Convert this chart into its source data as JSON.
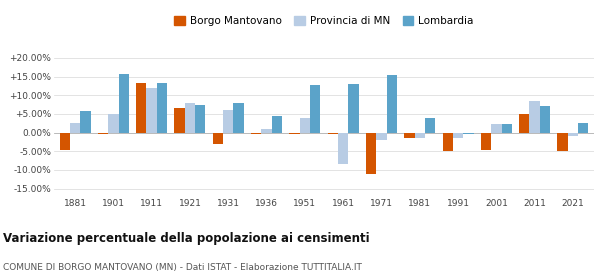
{
  "years": [
    1881,
    1901,
    1911,
    1921,
    1931,
    1936,
    1951,
    1961,
    1971,
    1981,
    1991,
    2001,
    2011,
    2021
  ],
  "borgo": [
    -4.8,
    -0.5,
    13.2,
    6.7,
    -3.2,
    -0.3,
    -0.3,
    -0.5,
    -11.0,
    -1.5,
    -5.0,
    -4.8,
    5.0,
    -5.0
  ],
  "provincia": [
    2.5,
    5.0,
    12.0,
    7.8,
    6.0,
    1.0,
    4.0,
    -8.5,
    -2.0,
    -1.5,
    -1.5,
    2.2,
    8.5,
    -0.8
  ],
  "lombardia": [
    5.7,
    15.7,
    13.2,
    7.5,
    8.0,
    4.5,
    12.7,
    13.0,
    15.5,
    4.0,
    -0.5,
    2.2,
    7.2,
    2.5
  ],
  "borgo_color": "#d45500",
  "provincia_color": "#b8cce4",
  "lombardia_color": "#5ba3c9",
  "title": "Variazione percentuale della popolazione ai censimenti",
  "subtitle": "COMUNE DI BORGO MANTOVANO (MN) - Dati ISTAT - Elaborazione TUTTITALIA.IT",
  "yticks": [
    -15,
    -10,
    -5,
    0,
    5,
    10,
    15,
    20
  ],
  "ytick_labels": [
    "-15.00%",
    "-10.00%",
    "-5.00%",
    "0.00%",
    "+5.00%",
    "+10.00%",
    "+15.00%",
    "+20.00%"
  ],
  "ylim": [
    -17,
    22
  ],
  "legend_labels": [
    "Borgo Mantovano",
    "Provincia di MN",
    "Lombardia"
  ],
  "bar_width": 0.27
}
